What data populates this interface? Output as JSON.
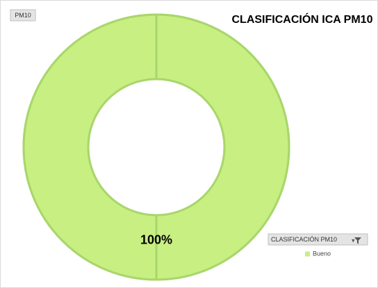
{
  "chart_data": {
    "type": "doughnut",
    "title": "CLASIFICACIÓN ICA PM10",
    "field_button": "PM10",
    "legend_title": "CLASIFICACIÓN PM10",
    "categories": [
      "Bueno"
    ],
    "values": [
      100
    ],
    "value_labels": [
      "100%"
    ],
    "colors": [
      "#c8ef82"
    ],
    "legend": "bottom-right"
  }
}
